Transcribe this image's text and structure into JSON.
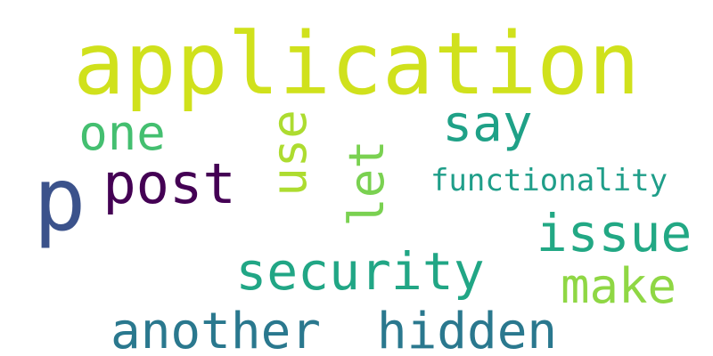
{
  "words": {
    "application": {
      "text": "application",
      "color": "#d0e11c"
    },
    "one": {
      "text": "one",
      "color": "#44bf70"
    },
    "say": {
      "text": "say",
      "color": "#1fa187"
    },
    "p": {
      "text": "p",
      "color": "#3b528b"
    },
    "post": {
      "text": "post",
      "color": "#440154"
    },
    "use": {
      "text": "use",
      "color": "#addc30"
    },
    "let": {
      "text": "let",
      "color": "#7ad151"
    },
    "functionality": {
      "text": "functionality",
      "color": "#1f9e89"
    },
    "issue": {
      "text": "issue",
      "color": "#22a884"
    },
    "security": {
      "text": "security",
      "color": "#21a685"
    },
    "make": {
      "text": "make",
      "color": "#8fd744"
    },
    "another": {
      "text": "another",
      "color": "#2a788e"
    },
    "hidden": {
      "text": "hidden",
      "color": "#2a788e"
    }
  }
}
